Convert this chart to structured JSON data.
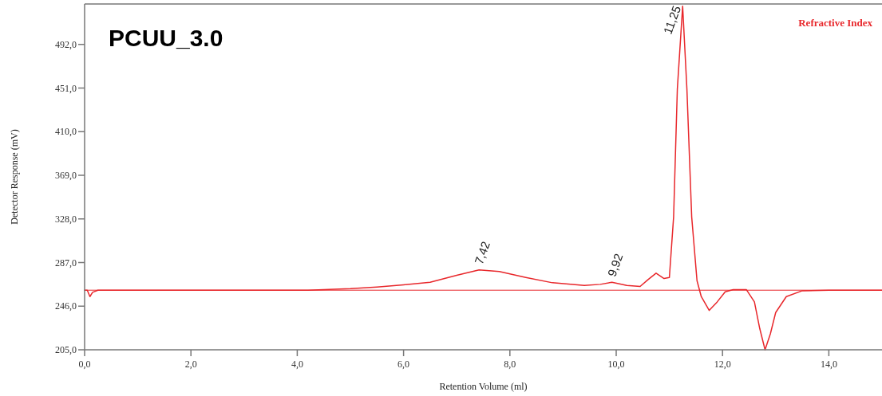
{
  "chart_data": {
    "type": "line",
    "title": "PCUU_3.0",
    "xlabel": "Retention Volume (ml)",
    "ylabel": "Detector Response (mV)",
    "xlim": [
      0,
      15
    ],
    "ylim": [
      205,
      530
    ],
    "xticks": [
      {
        "value": 0,
        "label": "0,0"
      },
      {
        "value": 2,
        "label": "2,0"
      },
      {
        "value": 4,
        "label": "4,0"
      },
      {
        "value": 6,
        "label": "6,0"
      },
      {
        "value": 8,
        "label": "8,0"
      },
      {
        "value": 10,
        "label": "10,0"
      },
      {
        "value": 12,
        "label": "12,0"
      },
      {
        "value": 14,
        "label": "14,0"
      }
    ],
    "yticks": [
      {
        "value": 205,
        "label": "205,0"
      },
      {
        "value": 246,
        "label": "246,0"
      },
      {
        "value": 287,
        "label": "287,0"
      },
      {
        "value": 328,
        "label": "328,0"
      },
      {
        "value": 369,
        "label": "369,0"
      },
      {
        "value": 410,
        "label": "410,0"
      },
      {
        "value": 451,
        "label": "451,0"
      },
      {
        "value": 492,
        "label": "492,0"
      }
    ],
    "series": [
      {
        "name": "Refractive Index",
        "color": "#e8272b",
        "x": [
          0,
          0.05,
          0.1,
          0.15,
          0.25,
          2,
          4.2,
          5,
          5.5,
          6,
          6.5,
          7,
          7.42,
          7.8,
          8.3,
          8.8,
          9.4,
          9.7,
          9.92,
          10.2,
          10.45,
          10.6,
          10.75,
          10.9,
          11.0,
          11.08,
          11.15,
          11.25,
          11.33,
          11.42,
          11.52,
          11.6,
          11.75,
          11.9,
          12.05,
          12.2,
          12.45,
          12.6,
          12.7,
          12.8,
          12.9,
          13.0,
          13.2,
          13.5,
          14,
          15
        ],
        "values": [
          261,
          261,
          255,
          259,
          261,
          261,
          261,
          262.5,
          264,
          266,
          268.5,
          275,
          280,
          278.5,
          273,
          268,
          265.5,
          266.5,
          268.5,
          265.5,
          264.5,
          271,
          277,
          272,
          273,
          330,
          450,
          528,
          450,
          330,
          270,
          255,
          242,
          250,
          259.5,
          261.5,
          261.5,
          250,
          225,
          205,
          220,
          240,
          255,
          260.5,
          261,
          261
        ]
      }
    ],
    "ref_lines": [
      {
        "axis": "y",
        "value": 261,
        "color": "#e8272b"
      }
    ],
    "annotations": [
      {
        "text": "7,42",
        "x": 7.42,
        "y": 280
      },
      {
        "text": "9,92",
        "x": 9.92,
        "y": 268.5
      },
      {
        "text": "11,25",
        "x": 11.25,
        "y": 528
      }
    ],
    "legend": "top right",
    "grid": false,
    "marker": "none",
    "line_style": "solid"
  }
}
